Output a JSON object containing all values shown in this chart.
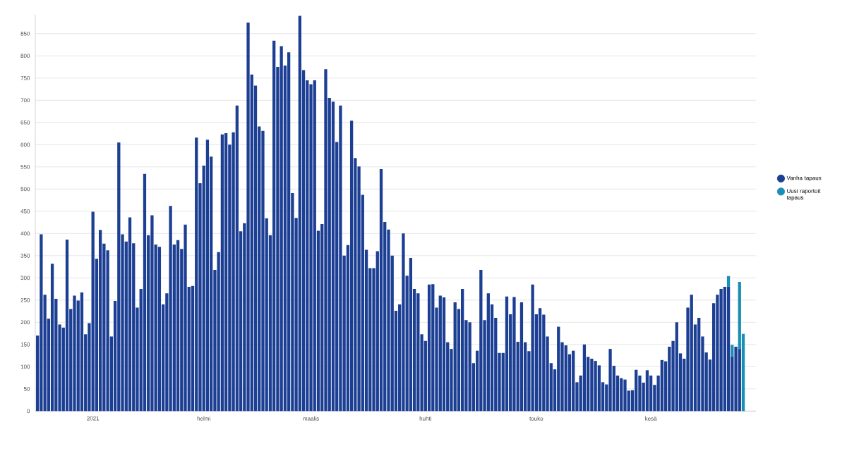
{
  "chart_data": {
    "type": "bar",
    "stacked": true,
    "grid": "y",
    "legend": "right",
    "categories": [
      null,
      null,
      null,
      null,
      null,
      null,
      null,
      null,
      null,
      null,
      null,
      null,
      null,
      null,
      null,
      "2021",
      null,
      null,
      null,
      null,
      null,
      null,
      null,
      null,
      null,
      null,
      null,
      null,
      null,
      null,
      null,
      null,
      null,
      null,
      null,
      null,
      null,
      null,
      null,
      null,
      null,
      null,
      null,
      null,
      null,
      "helmi",
      null,
      null,
      null,
      null,
      null,
      null,
      null,
      null,
      null,
      null,
      null,
      null,
      null,
      null,
      null,
      null,
      null,
      null,
      null,
      null,
      null,
      null,
      null,
      null,
      null,
      null,
      null,
      null,
      "maalis",
      null,
      null,
      null,
      null,
      null,
      null,
      null,
      null,
      null,
      null,
      null,
      null,
      null,
      null,
      null,
      null,
      null,
      null,
      null,
      null,
      null,
      null,
      null,
      null,
      null,
      null,
      null,
      null,
      null,
      null,
      "huhti",
      null,
      null,
      null,
      null,
      null,
      null,
      null,
      null,
      null,
      null,
      null,
      null,
      null,
      null,
      null,
      null,
      null,
      null,
      null,
      null,
      null,
      null,
      null,
      null,
      null,
      null,
      null,
      null,
      null,
      "touko",
      null,
      null,
      null,
      null,
      null,
      null,
      null,
      null,
      null,
      null,
      null,
      null,
      null,
      null,
      null,
      null,
      null,
      null,
      null,
      null,
      null,
      null,
      null,
      null,
      null,
      null,
      null,
      null,
      null,
      null,
      "kesä",
      null,
      null,
      null,
      null,
      null,
      null,
      null,
      null,
      null,
      null,
      null,
      null,
      null,
      null,
      null,
      null,
      null,
      null,
      null,
      null,
      null,
      null,
      null,
      null,
      null
    ],
    "series": [
      {
        "name": "Vanha tapaus",
        "color": "#1c3f94",
        "values": [
          170,
          398,
          262,
          208,
          332,
          253,
          195,
          188,
          386,
          230,
          260,
          249,
          267,
          173,
          198,
          449,
          343,
          408,
          377,
          362,
          168,
          248,
          605,
          398,
          382,
          436,
          378,
          233,
          275,
          534,
          396,
          441,
          375,
          370,
          240,
          265,
          462,
          375,
          385,
          365,
          420,
          280,
          282,
          616,
          513,
          553,
          611,
          573,
          318,
          358,
          623,
          626,
          600,
          628,
          688,
          405,
          423,
          875,
          758,
          733,
          641,
          631,
          434,
          396,
          834,
          775,
          822,
          778,
          808,
          491,
          435,
          890,
          768,
          745,
          736,
          745,
          406,
          421,
          770,
          705,
          697,
          606,
          688,
          350,
          374,
          654,
          570,
          551,
          487,
          363,
          322,
          322,
          360,
          545,
          426,
          409,
          350,
          226,
          240,
          400,
          305,
          345,
          275,
          265,
          173,
          158,
          285,
          286,
          233,
          260,
          256,
          155,
          140,
          245,
          230,
          275,
          205,
          200,
          108,
          136,
          318,
          205,
          265,
          240,
          210,
          131,
          131,
          258,
          218,
          257,
          156,
          245,
          155,
          135,
          285,
          218,
          232,
          217,
          168,
          108,
          94,
          190,
          155,
          148,
          128,
          136,
          65,
          80,
          150,
          122,
          118,
          113,
          103,
          65,
          60,
          140,
          102,
          80,
          74,
          71,
          46,
          47,
          93,
          80,
          64,
          92,
          80,
          59,
          80,
          115,
          112,
          145,
          158,
          200,
          130,
          118,
          233,
          262,
          195,
          210,
          168,
          132,
          116,
          243,
          262,
          275,
          280,
          280,
          123,
          145,
          140,
          null
        ]
      },
      {
        "name": "Uusi raportoit tapaus",
        "color": "#1a8fb5",
        "values": [
          null,
          null,
          null,
          null,
          null,
          null,
          null,
          null,
          null,
          null,
          null,
          null,
          null,
          null,
          null,
          null,
          null,
          null,
          null,
          null,
          null,
          null,
          null,
          null,
          null,
          null,
          null,
          null,
          null,
          null,
          null,
          null,
          null,
          null,
          null,
          null,
          null,
          null,
          null,
          null,
          null,
          null,
          null,
          null,
          null,
          null,
          null,
          null,
          null,
          null,
          null,
          null,
          null,
          null,
          null,
          null,
          null,
          null,
          null,
          null,
          null,
          null,
          null,
          null,
          null,
          null,
          null,
          null,
          null,
          null,
          null,
          null,
          null,
          null,
          null,
          null,
          null,
          null,
          null,
          null,
          null,
          null,
          null,
          null,
          null,
          null,
          null,
          null,
          null,
          null,
          null,
          null,
          null,
          null,
          null,
          null,
          null,
          null,
          null,
          null,
          null,
          null,
          null,
          null,
          null,
          null,
          null,
          null,
          null,
          null,
          null,
          null,
          null,
          null,
          null,
          null,
          null,
          null,
          null,
          null,
          null,
          null,
          null,
          null,
          null,
          null,
          null,
          null,
          null,
          null,
          null,
          null,
          null,
          null,
          null,
          null,
          null,
          null,
          null,
          null,
          null,
          null,
          null,
          null,
          null,
          null,
          null,
          null,
          null,
          null,
          null,
          null,
          null,
          null,
          null,
          null,
          null,
          null,
          null,
          null,
          null,
          null,
          null,
          null,
          null,
          null,
          null,
          null,
          null,
          null,
          null,
          null,
          null,
          null,
          null,
          null,
          null,
          null,
          null,
          null,
          null,
          null,
          null,
          null,
          null,
          null,
          null,
          24,
          26,
          null,
          151,
          174
        ]
      }
    ],
    "ylim": [
      0,
      893
    ],
    "yticks": [
      0,
      50,
      100,
      150,
      200,
      250,
      300,
      350,
      400,
      450,
      500,
      550,
      600,
      650,
      700,
      750,
      800,
      850
    ]
  }
}
